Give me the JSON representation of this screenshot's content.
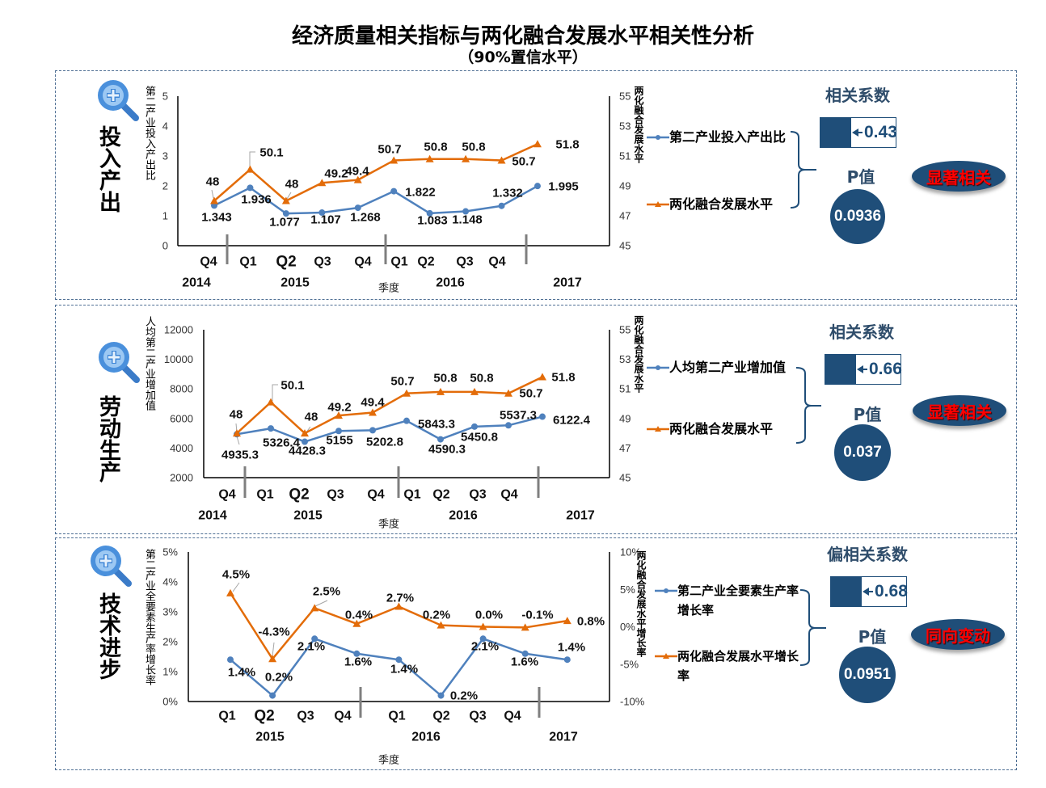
{
  "page": {
    "title": "经济质量相关指标与两化融合发展水平相关性分析",
    "subtitle": "（90%置信水平）"
  },
  "colors": {
    "series_blue": "#4f81bd",
    "series_orange": "#e36c09",
    "navy": "#1f4e79",
    "verdict_text": "#ff0000"
  },
  "panels": [
    {
      "section_label": "投入产出",
      "legend": [
        {
          "label": "第二产业投入产出比",
          "marker": "circle"
        },
        {
          "label": "两化融合发展水平",
          "marker": "triangle"
        }
      ],
      "coef_title": "相关系数",
      "coef_value": "0.43",
      "p_title": "P值",
      "p_value": "0.0936",
      "verdict": "显著相关"
    },
    {
      "section_label": "劳动生产",
      "legend": [
        {
          "label": "人均第二产业增加值",
          "marker": "circle"
        },
        {
          "label": "两化融合发展水平",
          "marker": "triangle"
        }
      ],
      "coef_title": "相关系数",
      "coef_value": "0.66",
      "p_title": "P值",
      "p_value": "0.037",
      "verdict": "显著相关"
    },
    {
      "section_label": "技术进步",
      "legend": [
        {
          "label": "第二产业全要素生产率增长率",
          "marker": "circle"
        },
        {
          "label": "两化融合发展水平增长率",
          "marker": "triangle"
        }
      ],
      "coef_title": "偏相关系数",
      "coef_value": "0.68",
      "p_title": "P值",
      "p_value": "0.0951",
      "verdict": "同向变动"
    }
  ],
  "chart_data": [
    {
      "type": "line",
      "title": "",
      "xlabel": "季度",
      "ylabel": "第二产业投入产出比",
      "y2label": "两化融合发展水平",
      "categories": [
        "2014 Q4",
        "2015 Q1",
        "2015 Q2",
        "2015 Q3",
        "2015 Q4",
        "2016 Q1",
        "2016 Q2",
        "2016 Q3",
        "2016 Q4",
        "2017"
      ],
      "quarter_labels": [
        "Q4",
        "Q1",
        "Q2",
        "Q3",
        "Q4",
        "Q1",
        "Q2",
        "Q3",
        "Q4"
      ],
      "year_labels": [
        "2014",
        "2015",
        "2016",
        "2017"
      ],
      "ylim": [
        0,
        5
      ],
      "yticks": [
        0,
        1,
        2,
        3,
        4,
        5
      ],
      "ytick_labels": [
        "0",
        "1",
        "2",
        "3",
        "4",
        "5"
      ],
      "y2lim": [
        45,
        55
      ],
      "y2ticks": [
        45,
        47,
        49,
        51,
        53,
        55
      ],
      "y2tick_labels": [
        "45",
        "47",
        "49",
        "51",
        "53",
        "55"
      ],
      "grid": false,
      "legend": "right",
      "series": [
        {
          "name": "第二产业投入产出比",
          "axis": "left",
          "color": "#4f81bd",
          "marker": "circle",
          "values": [
            1.343,
            1.936,
            1.077,
            1.107,
            1.268,
            1.822,
            1.083,
            1.148,
            1.332,
            1.995
          ],
          "labels": [
            "1.343",
            "1.936",
            "1.077",
            "1.107",
            "1.268",
            "1.822",
            "1.083",
            "1.148",
            "1.332",
            "1.995"
          ]
        },
        {
          "name": "两化融合发展水平",
          "axis": "right",
          "color": "#e36c09",
          "marker": "triangle",
          "values": [
            48,
            50.1,
            48,
            49.2,
            49.4,
            50.7,
            50.8,
            50.8,
            50.7,
            51.8
          ],
          "labels": [
            "48",
            "50.1",
            "48",
            "49.2",
            "49.4",
            "50.7",
            "50.8",
            "50.8",
            "50.7",
            "51.8"
          ]
        }
      ]
    },
    {
      "type": "line",
      "title": "",
      "xlabel": "季度",
      "ylabel": "人均第二产业增加值",
      "y2label": "两化融合发展水平",
      "categories": [
        "2014 Q4",
        "2015 Q1",
        "2015 Q2",
        "2015 Q3",
        "2015 Q4",
        "2016 Q1",
        "2016 Q2",
        "2016 Q3",
        "2016 Q4",
        "2017"
      ],
      "quarter_labels": [
        "Q4",
        "Q1",
        "Q2",
        "Q3",
        "Q4",
        "Q1",
        "Q2",
        "Q3",
        "Q4"
      ],
      "year_labels": [
        "2014",
        "2015",
        "2016",
        "2017"
      ],
      "ylim": [
        2000,
        12000
      ],
      "yticks": [
        2000,
        4000,
        6000,
        8000,
        10000,
        12000
      ],
      "ytick_labels": [
        "2000",
        "4000",
        "6000",
        "8000",
        "10000",
        "12000"
      ],
      "y2lim": [
        45,
        55
      ],
      "y2ticks": [
        45,
        47,
        49,
        51,
        53,
        55
      ],
      "y2tick_labels": [
        "45",
        "47",
        "49",
        "51",
        "53",
        "55"
      ],
      "grid": false,
      "legend": "right",
      "series": [
        {
          "name": "人均第二产业增加值",
          "axis": "left",
          "color": "#4f81bd",
          "marker": "circle",
          "values": [
            4935.3,
            5326.4,
            4428.3,
            5155,
            5202.8,
            5843.3,
            4590.3,
            5450.8,
            5537.3,
            6122.4
          ],
          "labels": [
            "4935.3",
            "5326.4",
            "4428.3",
            "5155",
            "5202.8",
            "5843.3",
            "4590.3",
            "5450.8",
            "5537.3",
            "6122.4"
          ]
        },
        {
          "name": "两化融合发展水平",
          "axis": "right",
          "color": "#e36c09",
          "marker": "triangle",
          "values": [
            48,
            50.1,
            48,
            49.2,
            49.4,
            50.7,
            50.8,
            50.8,
            50.7,
            51.8
          ],
          "labels": [
            "48",
            "50.1",
            "48",
            "49.2",
            "49.4",
            "50.7",
            "50.8",
            "50.8",
            "50.7",
            "51.8"
          ]
        }
      ]
    },
    {
      "type": "line",
      "title": "",
      "xlabel": "季度",
      "ylabel": "第二产业全要素生产率增长率",
      "y2label": "两化融合发展水平增长率",
      "categories": [
        "2015 Q1",
        "2015 Q2",
        "2015 Q3",
        "2015 Q4",
        "2016 Q1",
        "2016 Q2",
        "2016 Q3",
        "2016 Q4",
        "2017"
      ],
      "quarter_labels": [
        "Q1",
        "Q2",
        "Q3",
        "Q4",
        "Q1",
        "Q2",
        "Q3",
        "Q4"
      ],
      "year_labels": [
        "2015",
        "2016",
        "2017"
      ],
      "ylim": [
        0,
        5
      ],
      "yticks": [
        0,
        1,
        2,
        3,
        4,
        5
      ],
      "ytick_labels": [
        "0%",
        "1%",
        "2%",
        "3%",
        "4%",
        "5%"
      ],
      "y2lim": [
        -10,
        10
      ],
      "y2ticks": [
        -10,
        -5,
        0,
        5,
        10
      ],
      "y2tick_labels": [
        "-10%",
        "-5%",
        "0%",
        "5%",
        "10%"
      ],
      "grid": false,
      "legend": "right",
      "series": [
        {
          "name": "第二产业全要素生产率增长率",
          "axis": "left",
          "color": "#4f81bd",
          "marker": "circle",
          "values": [
            1.4,
            0.2,
            2.1,
            1.6,
            1.4,
            0.2,
            2.1,
            1.6,
            1.4
          ],
          "labels": [
            "1.4%",
            "0.2%",
            "2.1%",
            "1.6%",
            "1.4%",
            "0.2%",
            "2.1%",
            "1.6%",
            "1.4%"
          ]
        },
        {
          "name": "两化融合发展水平增长率",
          "axis": "right",
          "color": "#e36c09",
          "marker": "triangle",
          "values": [
            4.5,
            -4.3,
            2.5,
            0.4,
            2.7,
            0.2,
            0.0,
            -0.1,
            0.8
          ],
          "labels": [
            "4.5%",
            "-4.3%",
            "2.5%",
            "0.4%",
            "2.7%",
            "0.2%",
            "0.0%",
            "-0.1%",
            "0.8%"
          ]
        }
      ]
    }
  ]
}
